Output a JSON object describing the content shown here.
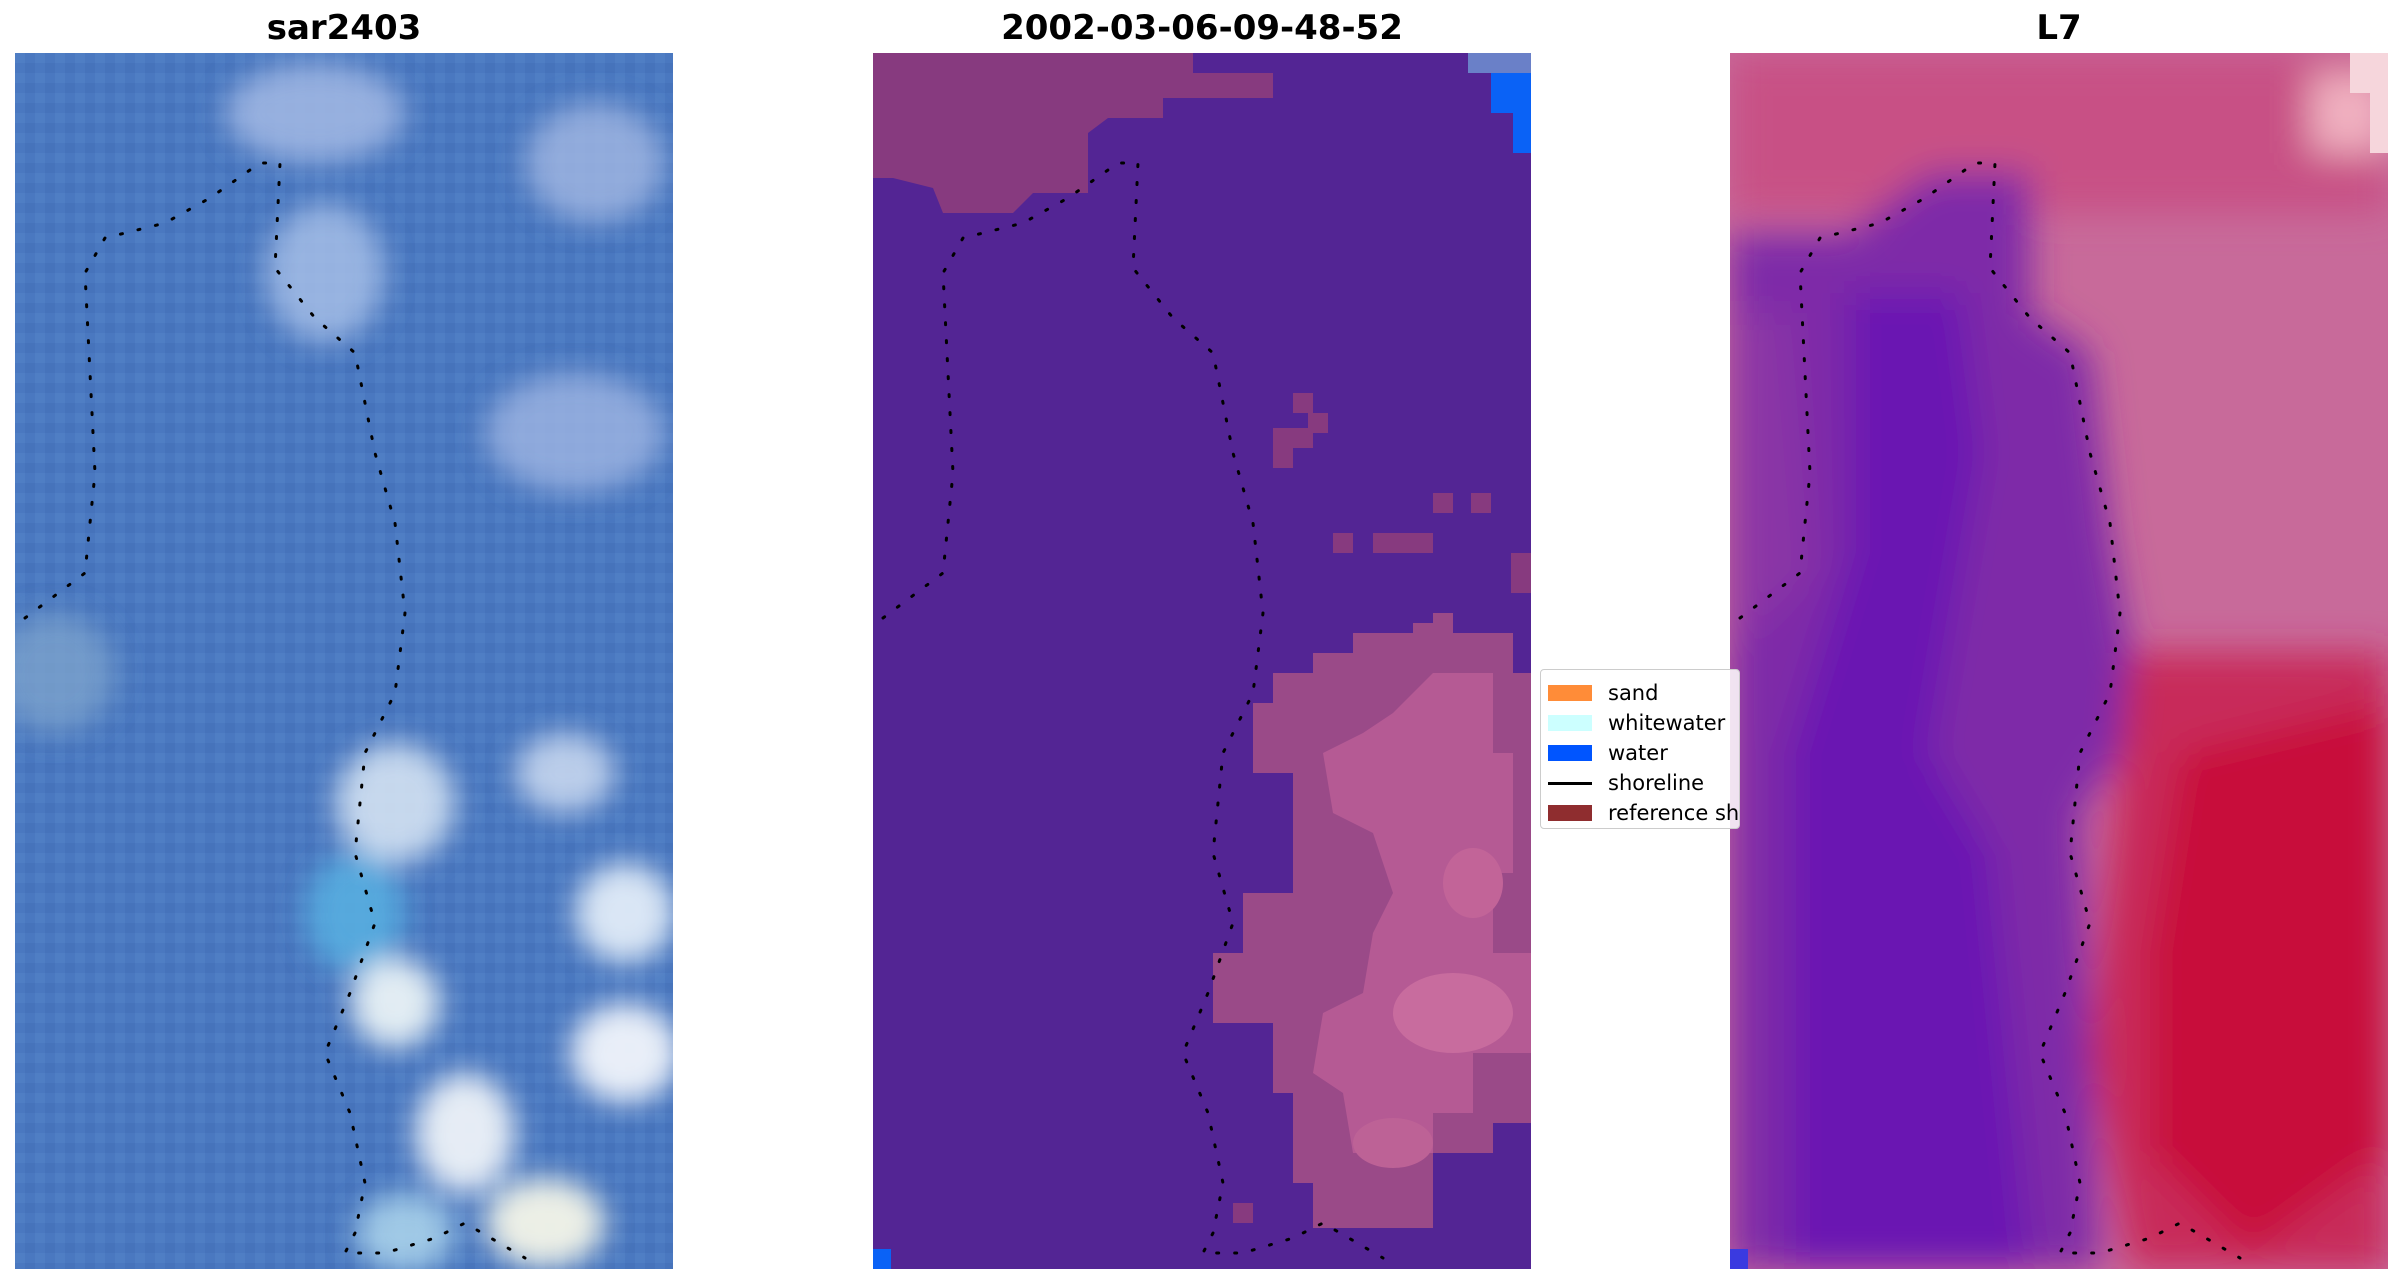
{
  "panels": [
    {
      "title": "sar2403",
      "content": "satellite-rgb-image",
      "colors": {
        "base": "#4a78c0",
        "lighter": "#7fa0d8",
        "cloud": "#e8eef8",
        "cyan": "#5ab0e0",
        "shoreline_dots": "#000000"
      }
    },
    {
      "title": "2002-03-06-09-48-52",
      "content": "classified-image",
      "colors": {
        "base": "#532594",
        "land_patch": "#873a7f",
        "land_pink": "#c0649a",
        "water_patch": "#0063ff",
        "shoreline_dots": "#000000"
      }
    },
    {
      "title": "L7",
      "content": "index-image",
      "colors": {
        "purple": "#6a1aa8",
        "pink": "#c86a9a",
        "red": "#c8143c",
        "shoreline_dots": "#000000"
      }
    }
  ],
  "legend": {
    "items": [
      {
        "label": "sand",
        "color": "#ff8c38",
        "kind": "patch"
      },
      {
        "label": "whitewater",
        "color": "#ccffff",
        "kind": "patch"
      },
      {
        "label": "water",
        "color": "#0055ff",
        "kind": "patch"
      },
      {
        "label": "shoreline",
        "color": "#000000",
        "kind": "line"
      },
      {
        "label": "reference sh",
        "color": "#8f2d2f",
        "kind": "patch"
      }
    ]
  }
}
